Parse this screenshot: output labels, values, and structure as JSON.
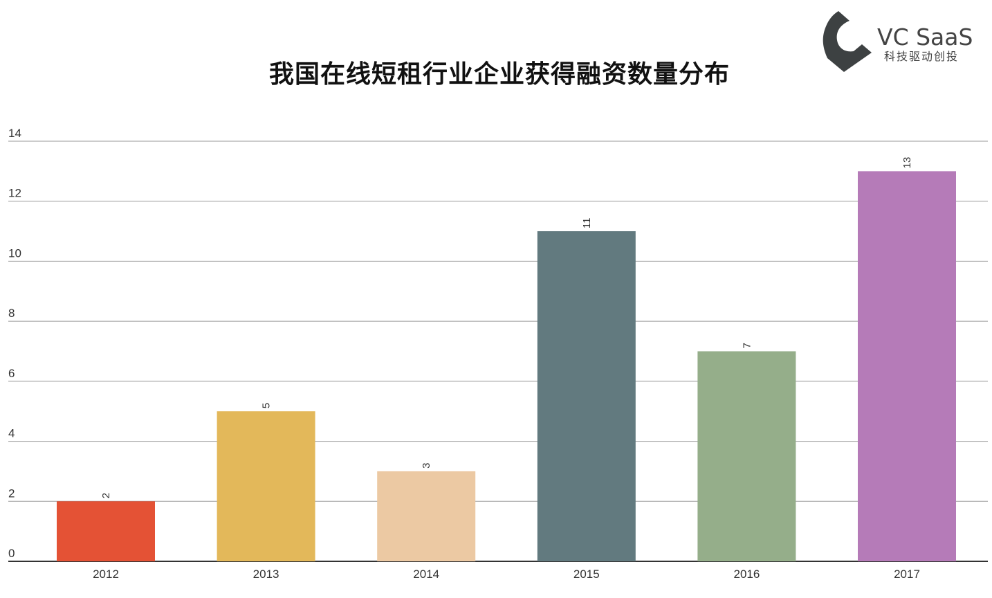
{
  "logo": {
    "name": "VC SaaS",
    "tagline": "科技驱动创投"
  },
  "chart_data": {
    "type": "bar",
    "title": "我国在线短租行业企业获得融资数量分布",
    "categories": [
      "2012",
      "2013",
      "2014",
      "2015",
      "2016",
      "2017"
    ],
    "values": [
      2,
      5,
      3,
      11,
      7,
      13
    ],
    "data_labels": [
      "2",
      "5",
      "3",
      "11",
      "7",
      "13"
    ],
    "colors": [
      "#e45235",
      "#e3b85a",
      "#ecc9a3",
      "#627a7f",
      "#95ae8a",
      "#b57bb8"
    ],
    "xlabel": "",
    "ylabel": "",
    "ylim": [
      0,
      14
    ],
    "yticks": [
      0,
      2,
      4,
      6,
      8,
      10,
      12,
      14
    ],
    "grid": true,
    "legend": "none"
  }
}
